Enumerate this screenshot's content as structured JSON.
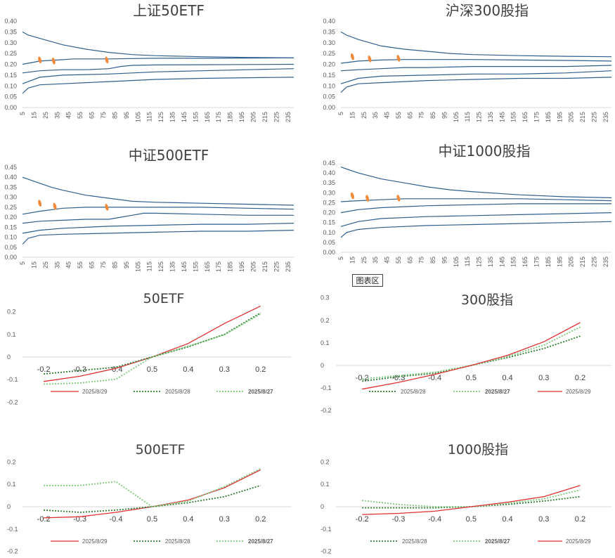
{
  "tooltip": "图表区",
  "colors": {
    "band": "#2f5f8f",
    "highlight": "#f08a3c",
    "red": "#e03030",
    "dark_green": "#2f7d32",
    "light_green": "#7fc97f",
    "legend_red_text": "#c00000",
    "legend_text": "#595959"
  },
  "chart_data": [
    {
      "type": "line",
      "title": "上证50ETF",
      "xlabel": "",
      "ylabel": "",
      "x_ticks": [
        "5",
        "15",
        "25",
        "35",
        "45",
        "55",
        "65",
        "75",
        "85",
        "95",
        "105",
        "115",
        "125",
        "135",
        "145",
        "155",
        "165",
        "175",
        "185",
        "195",
        "205",
        "215",
        "225",
        "235"
      ],
      "xlim": [
        5,
        240
      ],
      "ylim": [
        0,
        0.4
      ],
      "y_ticks": [
        "0.00",
        "0.05",
        "0.10",
        "0.15",
        "0.20",
        "0.25",
        "0.30",
        "0.35",
        "0.40"
      ],
      "series": [
        {
          "name": "max",
          "x": [
            5,
            10,
            20,
            30,
            40,
            60,
            80,
            100,
            120,
            160,
            200,
            240
          ],
          "values": [
            0.35,
            0.335,
            0.32,
            0.305,
            0.29,
            0.27,
            0.255,
            0.245,
            0.24,
            0.235,
            0.232,
            0.23
          ]
        },
        {
          "name": "p75",
          "x": [
            5,
            20,
            35,
            50,
            80,
            120,
            160,
            200,
            240
          ],
          "values": [
            0.2,
            0.215,
            0.22,
            0.225,
            0.225,
            0.228,
            0.228,
            0.229,
            0.23
          ]
        },
        {
          "name": "median",
          "x": [
            5,
            20,
            40,
            60,
            80,
            90,
            100,
            120,
            160,
            200,
            240
          ],
          "values": [
            0.16,
            0.17,
            0.175,
            0.175,
            0.18,
            0.19,
            0.195,
            0.197,
            0.198,
            0.199,
            0.2
          ]
        },
        {
          "name": "p25",
          "x": [
            5,
            20,
            40,
            80,
            120,
            160,
            200,
            240
          ],
          "values": [
            0.11,
            0.14,
            0.15,
            0.155,
            0.165,
            0.17,
            0.175,
            0.18
          ]
        },
        {
          "name": "min",
          "x": [
            5,
            10,
            20,
            40,
            80,
            120,
            160,
            200,
            240
          ],
          "values": [
            0.065,
            0.09,
            0.105,
            0.11,
            0.12,
            0.13,
            0.135,
            0.138,
            0.14
          ]
        }
      ],
      "highlights": [
        {
          "x": 20,
          "y": 0.22
        },
        {
          "x": 32,
          "y": 0.215
        },
        {
          "x": 78,
          "y": 0.22
        }
      ]
    },
    {
      "type": "line",
      "title": "沪深300股指",
      "xlabel": "",
      "ylabel": "",
      "x_ticks": [
        "5",
        "15",
        "25",
        "35",
        "45",
        "55",
        "65",
        "75",
        "85",
        "95",
        "105",
        "115",
        "125",
        "135",
        "145",
        "155",
        "165",
        "175",
        "185",
        "195",
        "205",
        "215",
        "225",
        "235"
      ],
      "xlim": [
        5,
        240
      ],
      "ylim": [
        0,
        0.4
      ],
      "y_ticks": [
        "0.00",
        "0.05",
        "0.10",
        "0.15",
        "0.20",
        "0.25",
        "0.30",
        "0.35",
        "0.40"
      ],
      "series": [
        {
          "name": "max",
          "x": [
            5,
            10,
            20,
            30,
            40,
            60,
            80,
            100,
            120,
            160,
            200,
            240
          ],
          "values": [
            0.35,
            0.335,
            0.315,
            0.3,
            0.285,
            0.27,
            0.26,
            0.25,
            0.245,
            0.24,
            0.237,
            0.235
          ]
        },
        {
          "name": "p75",
          "x": [
            5,
            20,
            40,
            60,
            80,
            120,
            160,
            200,
            240
          ],
          "values": [
            0.205,
            0.215,
            0.22,
            0.222,
            0.222,
            0.222,
            0.22,
            0.218,
            0.215
          ]
        },
        {
          "name": "median",
          "x": [
            5,
            20,
            40,
            60,
            80,
            120,
            160,
            200,
            240
          ],
          "values": [
            0.17,
            0.175,
            0.18,
            0.185,
            0.185,
            0.19,
            0.19,
            0.19,
            0.195
          ]
        },
        {
          "name": "p25",
          "x": [
            5,
            20,
            40,
            80,
            120,
            160,
            200,
            240
          ],
          "values": [
            0.11,
            0.135,
            0.145,
            0.15,
            0.155,
            0.155,
            0.16,
            0.17
          ]
        },
        {
          "name": "min",
          "x": [
            5,
            10,
            20,
            40,
            80,
            120,
            160,
            200,
            240
          ],
          "values": [
            0.07,
            0.095,
            0.11,
            0.115,
            0.125,
            0.13,
            0.135,
            0.135,
            0.14
          ]
        }
      ],
      "highlights": [
        {
          "x": 15,
          "y": 0.235
        },
        {
          "x": 30,
          "y": 0.225
        },
        {
          "x": 55,
          "y": 0.228
        }
      ]
    },
    {
      "type": "line",
      "title": "中证500ETF",
      "xlabel": "",
      "ylabel": "",
      "x_ticks": [
        "5",
        "15",
        "25",
        "35",
        "45",
        "55",
        "65",
        "75",
        "85",
        "95",
        "105",
        "115",
        "125",
        "135",
        "145",
        "155",
        "165",
        "175",
        "185",
        "195",
        "205",
        "215",
        "225",
        "235"
      ],
      "xlim": [
        5,
        240
      ],
      "ylim": [
        0,
        0.45
      ],
      "y_ticks": [
        "0.00",
        "0.05",
        "0.10",
        "0.15",
        "0.20",
        "0.25",
        "0.30",
        "0.35",
        "0.40",
        "0.45"
      ],
      "series": [
        {
          "name": "max",
          "x": [
            5,
            10,
            20,
            30,
            40,
            60,
            80,
            100,
            120,
            160,
            200,
            240
          ],
          "values": [
            0.4,
            0.39,
            0.37,
            0.35,
            0.335,
            0.31,
            0.295,
            0.28,
            0.275,
            0.27,
            0.265,
            0.26
          ]
        },
        {
          "name": "p75",
          "x": [
            5,
            20,
            40,
            60,
            80,
            120,
            160,
            200,
            240
          ],
          "values": [
            0.215,
            0.23,
            0.245,
            0.25,
            0.25,
            0.25,
            0.25,
            0.245,
            0.24
          ]
        },
        {
          "name": "median",
          "x": [
            5,
            20,
            40,
            60,
            80,
            90,
            100,
            110,
            120,
            160,
            200,
            240
          ],
          "values": [
            0.17,
            0.18,
            0.185,
            0.19,
            0.19,
            0.2,
            0.21,
            0.22,
            0.22,
            0.215,
            0.21,
            0.21
          ]
        },
        {
          "name": "p25",
          "x": [
            5,
            20,
            40,
            80,
            120,
            160,
            200,
            240
          ],
          "values": [
            0.12,
            0.135,
            0.145,
            0.155,
            0.16,
            0.165,
            0.165,
            0.17
          ]
        },
        {
          "name": "min",
          "x": [
            5,
            10,
            20,
            40,
            80,
            120,
            160,
            200,
            240
          ],
          "values": [
            0.065,
            0.095,
            0.11,
            0.115,
            0.12,
            0.125,
            0.13,
            0.13,
            0.135
          ]
        }
      ],
      "highlights": [
        {
          "x": 20,
          "y": 0.27
        },
        {
          "x": 33,
          "y": 0.255
        },
        {
          "x": 78,
          "y": 0.25
        }
      ]
    },
    {
      "type": "line",
      "title": "中证1000股指",
      "xlabel": "",
      "ylabel": "",
      "x_ticks": [
        "5",
        "15",
        "25",
        "35",
        "45",
        "55",
        "65",
        "75",
        "85",
        "95",
        "105",
        "115",
        "125",
        "135",
        "145",
        "155",
        "165",
        "175",
        "185",
        "195",
        "205",
        "215",
        "225",
        "235"
      ],
      "xlim": [
        5,
        240
      ],
      "ylim": [
        0,
        0.45
      ],
      "y_ticks": [
        "0.00",
        "0.05",
        "0.10",
        "0.15",
        "0.20",
        "0.25",
        "0.30",
        "0.35",
        "0.40",
        "0.45"
      ],
      "series": [
        {
          "name": "max",
          "x": [
            5,
            10,
            20,
            30,
            40,
            60,
            80,
            100,
            120,
            160,
            200,
            240
          ],
          "values": [
            0.43,
            0.42,
            0.4,
            0.385,
            0.37,
            0.35,
            0.33,
            0.315,
            0.305,
            0.29,
            0.28,
            0.275
          ]
        },
        {
          "name": "p75",
          "x": [
            5,
            20,
            40,
            60,
            80,
            120,
            160,
            200,
            240
          ],
          "values": [
            0.255,
            0.26,
            0.265,
            0.27,
            0.27,
            0.27,
            0.27,
            0.265,
            0.26
          ]
        },
        {
          "name": "median",
          "x": [
            5,
            20,
            40,
            60,
            80,
            120,
            160,
            200,
            240
          ],
          "values": [
            0.2,
            0.215,
            0.225,
            0.23,
            0.235,
            0.24,
            0.245,
            0.245,
            0.245
          ]
        },
        {
          "name": "p25",
          "x": [
            5,
            20,
            40,
            80,
            120,
            160,
            200,
            240
          ],
          "values": [
            0.13,
            0.155,
            0.17,
            0.18,
            0.185,
            0.19,
            0.195,
            0.2
          ]
        },
        {
          "name": "min",
          "x": [
            5,
            10,
            20,
            40,
            80,
            120,
            160,
            200,
            240
          ],
          "values": [
            0.075,
            0.1,
            0.115,
            0.125,
            0.135,
            0.14,
            0.145,
            0.15,
            0.155
          ]
        }
      ],
      "highlights": [
        {
          "x": 15,
          "y": 0.285
        },
        {
          "x": 28,
          "y": 0.272
        },
        {
          "x": 55,
          "y": 0.273
        }
      ]
    },
    {
      "type": "line",
      "title": "50ETF",
      "xlabel": "",
      "ylabel": "",
      "categories": [
        "-0.2",
        "-0.3",
        "-0.4",
        "0.5",
        "0.4",
        "0.3",
        "0.2"
      ],
      "ylim": [
        -0.2,
        0.2
      ],
      "y_ticks": [
        "0.2",
        "0.1",
        "0",
        "-0.1",
        "-0.2"
      ],
      "series": [
        {
          "name": "2025/8/29",
          "style": "red",
          "values": [
            -0.108,
            -0.085,
            -0.05,
            0.0,
            0.06,
            0.148,
            0.28
          ]
        },
        {
          "name": "2025/8/28",
          "style": "dark_green",
          "values": [
            -0.075,
            -0.06,
            -0.045,
            0.0,
            0.045,
            0.1,
            0.195
          ]
        },
        {
          "name": "2025/8/27",
          "style": "light_green",
          "values": [
            -0.12,
            -0.115,
            -0.098,
            0.0,
            0.048,
            0.098,
            0.19
          ]
        }
      ]
    },
    {
      "type": "line",
      "title": "300股指",
      "xlabel": "",
      "ylabel": "",
      "categories": [
        "-0.2",
        "-0.3",
        "-0.4",
        "0.5",
        "0.4",
        "0.3",
        "0.2"
      ],
      "ylim": [
        -0.2,
        0.3
      ],
      "y_ticks": [
        "0.3",
        "0.2",
        "0.1",
        "0",
        "-0.1",
        "-0.2"
      ],
      "series": [
        {
          "name": "2025/8/28",
          "style": "dark_green",
          "values": [
            -0.07,
            -0.05,
            -0.035,
            0.0,
            0.035,
            0.075,
            0.13
          ]
        },
        {
          "name": "2025/8/27",
          "style": "light_green",
          "values": [
            -0.06,
            -0.045,
            -0.03,
            0.0,
            0.04,
            0.09,
            0.17
          ]
        },
        {
          "name": "2025/8/29",
          "style": "red",
          "values": [
            -0.105,
            -0.075,
            -0.04,
            0.0,
            0.045,
            0.105,
            0.19
          ]
        }
      ]
    },
    {
      "type": "line",
      "title": "500ETF",
      "xlabel": "",
      "ylabel": "",
      "categories": [
        "-0.2",
        "-0.3",
        "-0.4",
        "0.5",
        "0.4",
        "0.3",
        "0.2"
      ],
      "ylim": [
        -0.2,
        0.2
      ],
      "y_ticks": [
        "0.2",
        "0.1",
        "0",
        "-0.1",
        "-0.2"
      ],
      "series": [
        {
          "name": "2025/8/29",
          "style": "red",
          "values": [
            -0.05,
            -0.045,
            -0.025,
            0.0,
            0.03,
            0.085,
            0.165
          ]
        },
        {
          "name": "2025/8/28",
          "style": "dark_green",
          "values": [
            -0.015,
            -0.025,
            -0.015,
            0.0,
            0.018,
            0.045,
            0.095
          ]
        },
        {
          "name": "2025/8/27",
          "style": "light_green",
          "values": [
            0.095,
            0.095,
            0.112,
            0.0,
            0.025,
            0.09,
            0.17
          ]
        }
      ]
    },
    {
      "type": "line",
      "title": "1000股指",
      "xlabel": "",
      "ylabel": "",
      "categories": [
        "-0.2",
        "-0.3",
        "-0.4",
        "0.5",
        "0.4",
        "0.3",
        "0.2"
      ],
      "ylim": [
        -0.2,
        0.2
      ],
      "y_ticks": [
        "0.2",
        "0.1",
        "0",
        "-0.1",
        "-0.2"
      ],
      "series": [
        {
          "name": "2025/8/28",
          "style": "dark_green",
          "values": [
            -0.005,
            -0.005,
            -0.005,
            0.0,
            0.01,
            0.025,
            0.045
          ]
        },
        {
          "name": "2025/8/27",
          "style": "light_green",
          "values": [
            0.028,
            0.01,
            0.0,
            0.0,
            0.015,
            0.035,
            0.075
          ]
        },
        {
          "name": "2025/8/29",
          "style": "red",
          "values": [
            -0.035,
            -0.03,
            -0.02,
            0.0,
            0.02,
            0.045,
            0.095
          ]
        }
      ]
    }
  ]
}
